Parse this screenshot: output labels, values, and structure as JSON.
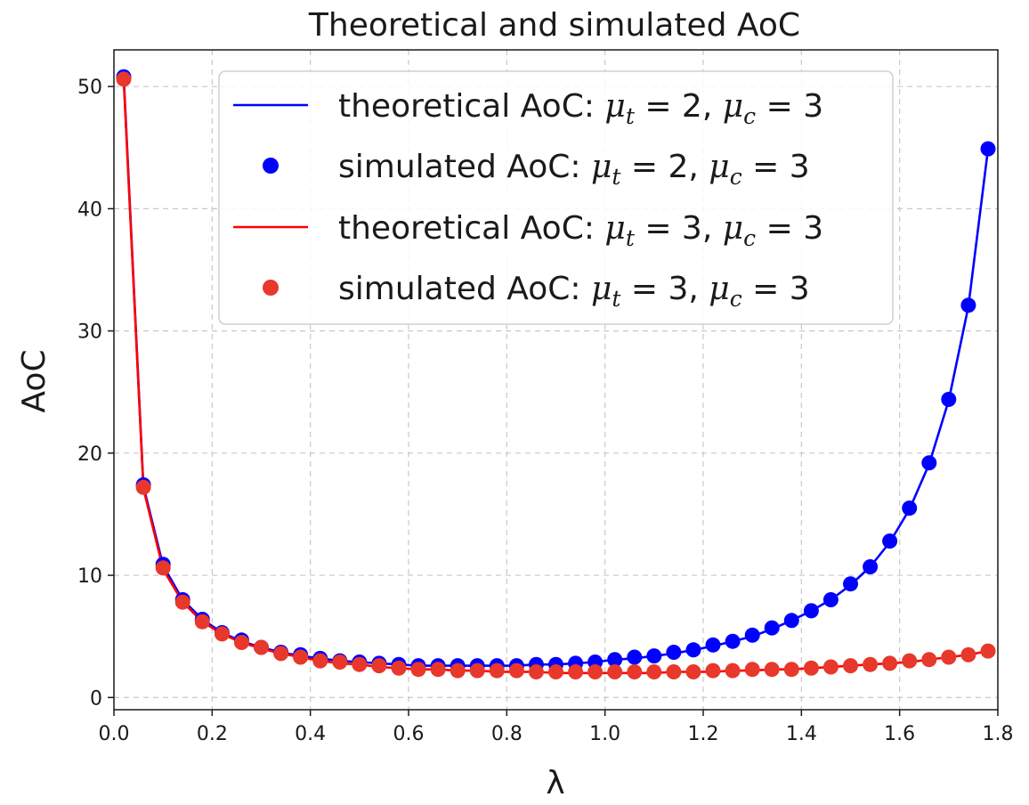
{
  "chart_data": {
    "type": "line",
    "title": "Theoretical and simulated AoC",
    "xlabel": "λ",
    "ylabel": "AoC",
    "xlim": [
      0.0,
      1.8
    ],
    "ylim": [
      -1,
      53
    ],
    "grid": true,
    "legend_position": "top-center",
    "x_ticks": [
      0.0,
      0.2,
      0.4,
      0.6,
      0.8,
      1.0,
      1.2,
      1.4,
      1.6,
      1.8
    ],
    "x_tick_labels": [
      "0.0",
      "0.2",
      "0.4",
      "0.6",
      "0.8",
      "1.0",
      "1.2",
      "1.4",
      "1.6",
      "1.8"
    ],
    "y_ticks": [
      0,
      10,
      20,
      30,
      40,
      50
    ],
    "y_tick_labels": [
      "0",
      "10",
      "20",
      "30",
      "40",
      "50"
    ],
    "x": [
      0.02,
      0.06,
      0.1,
      0.14,
      0.18,
      0.22,
      0.26,
      0.3,
      0.34,
      0.38,
      0.42,
      0.46,
      0.5,
      0.54,
      0.58,
      0.62,
      0.66,
      0.7,
      0.74,
      0.78,
      0.82,
      0.86,
      0.9,
      0.94,
      0.98,
      1.02,
      1.06,
      1.1,
      1.14,
      1.18,
      1.22,
      1.26,
      1.3,
      1.34,
      1.38,
      1.42,
      1.46,
      1.5,
      1.54,
      1.58,
      1.62,
      1.66,
      1.7,
      1.74,
      1.78
    ],
    "series": [
      {
        "name": "theoretical AoC: μt=2, μc=3",
        "legend_prefix": "theoretical AoC: ",
        "mu_t": "2",
        "mu_c": "3",
        "kind": "line",
        "color": "#0000ff",
        "values": [
          50.8,
          17.3,
          10.8,
          8.0,
          6.4,
          5.3,
          4.6,
          4.1,
          3.7,
          3.4,
          3.2,
          3.0,
          2.9,
          2.8,
          2.7,
          2.6,
          2.6,
          2.6,
          2.6,
          2.6,
          2.6,
          2.7,
          2.7,
          2.8,
          2.9,
          3.1,
          3.2,
          3.4,
          3.6,
          3.9,
          4.2,
          4.6,
          5.0,
          5.6,
          6.3,
          7.1,
          8.0,
          9.2,
          10.7,
          12.7,
          15.4,
          19.1,
          24.3,
          32.0,
          44.9
        ]
      },
      {
        "name": "simulated AoC: μt=2, μc=3",
        "legend_prefix": "simulated AoC: ",
        "mu_t": "2",
        "mu_c": "3",
        "kind": "scatter",
        "color": "#0000ff",
        "values": [
          50.8,
          17.4,
          10.9,
          8.0,
          6.4,
          5.3,
          4.7,
          4.1,
          3.7,
          3.5,
          3.2,
          3.0,
          2.9,
          2.8,
          2.7,
          2.6,
          2.6,
          2.6,
          2.6,
          2.6,
          2.6,
          2.7,
          2.7,
          2.8,
          2.9,
          3.1,
          3.3,
          3.4,
          3.7,
          3.9,
          4.3,
          4.6,
          5.1,
          5.7,
          6.3,
          7.1,
          8.0,
          9.3,
          10.7,
          12.8,
          15.5,
          19.2,
          24.4,
          32.1,
          44.9
        ]
      },
      {
        "name": "theoretical AoC: μt=3, μc=3",
        "legend_prefix": "theoretical AoC: ",
        "mu_t": "3",
        "mu_c": "3",
        "kind": "line",
        "color": "#ff0000",
        "values": [
          50.5,
          17.1,
          10.5,
          7.8,
          6.2,
          5.2,
          4.5,
          4.0,
          3.6,
          3.3,
          3.0,
          2.8,
          2.7,
          2.5,
          2.4,
          2.3,
          2.3,
          2.2,
          2.2,
          2.1,
          2.1,
          2.1,
          2.0,
          2.0,
          2.0,
          2.0,
          2.0,
          2.0,
          2.1,
          2.1,
          2.1,
          2.2,
          2.2,
          2.3,
          2.3,
          2.4,
          2.5,
          2.6,
          2.7,
          2.8,
          2.9,
          3.1,
          3.3,
          3.5,
          3.8
        ]
      },
      {
        "name": "simulated AoC: μt=3, μc=3",
        "legend_prefix": "simulated AoC: ",
        "mu_t": "3",
        "mu_c": "3",
        "kind": "scatter",
        "color": "#e8382b",
        "values": [
          50.6,
          17.2,
          10.6,
          7.8,
          6.2,
          5.2,
          4.5,
          4.1,
          3.6,
          3.3,
          3.0,
          2.9,
          2.7,
          2.6,
          2.4,
          2.3,
          2.3,
          2.2,
          2.2,
          2.2,
          2.2,
          2.1,
          2.1,
          2.1,
          2.1,
          2.1,
          2.1,
          2.1,
          2.1,
          2.1,
          2.2,
          2.2,
          2.3,
          2.3,
          2.3,
          2.4,
          2.5,
          2.6,
          2.7,
          2.8,
          3.0,
          3.1,
          3.3,
          3.5,
          3.8
        ]
      }
    ]
  }
}
